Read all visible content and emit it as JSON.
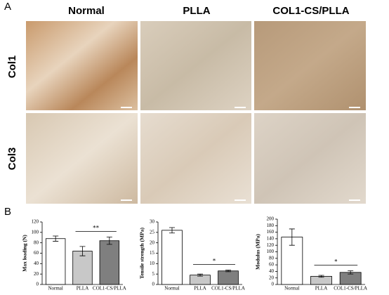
{
  "panel_a": {
    "label": "A",
    "columns": [
      "Normal",
      "PLLA",
      "COL1-CS/PLLA"
    ],
    "rows": [
      "Col1",
      "Col3"
    ]
  },
  "panel_b": {
    "label": "B"
  },
  "chart_data": [
    {
      "type": "bar",
      "y_label": "Max loading (N)",
      "categories": [
        "Normal",
        "PLLA",
        "COL1-CS/PLLA"
      ],
      "values": [
        88,
        64,
        84
      ],
      "errors": [
        5,
        9,
        7
      ],
      "colors": [
        "#ffffff",
        "#c8c8c8",
        "#7f7f7f"
      ],
      "ylim": [
        0,
        120
      ],
      "yticks": [
        0,
        20,
        40,
        60,
        80,
        100,
        120
      ],
      "annotation": "**"
    },
    {
      "type": "bar",
      "y_label": "Tensile strength (MPa)",
      "categories": [
        "Normal",
        "PLLA",
        "COL1-CS/PLLA"
      ],
      "values": [
        26,
        4.5,
        6.5
      ],
      "errors": [
        1.3,
        0.5,
        0.4
      ],
      "colors": [
        "#ffffff",
        "#c8c8c8",
        "#7f7f7f"
      ],
      "ylim": [
        0,
        30
      ],
      "yticks": [
        0,
        5,
        10,
        15,
        20,
        25,
        30
      ],
      "annotation": "*"
    },
    {
      "type": "bar",
      "y_label": "Modulus (MPa)",
      "categories": [
        "Normal",
        "PLLA",
        "COL1-CS/PLLA"
      ],
      "values": [
        145,
        25,
        37
      ],
      "errors": [
        25,
        3,
        5
      ],
      "colors": [
        "#ffffff",
        "#c8c8c8",
        "#7f7f7f"
      ],
      "ylim": [
        0,
        200
      ],
      "yticks": [
        0,
        20,
        40,
        60,
        80,
        100,
        120,
        140,
        160,
        180,
        200
      ],
      "annotation": "*"
    }
  ]
}
